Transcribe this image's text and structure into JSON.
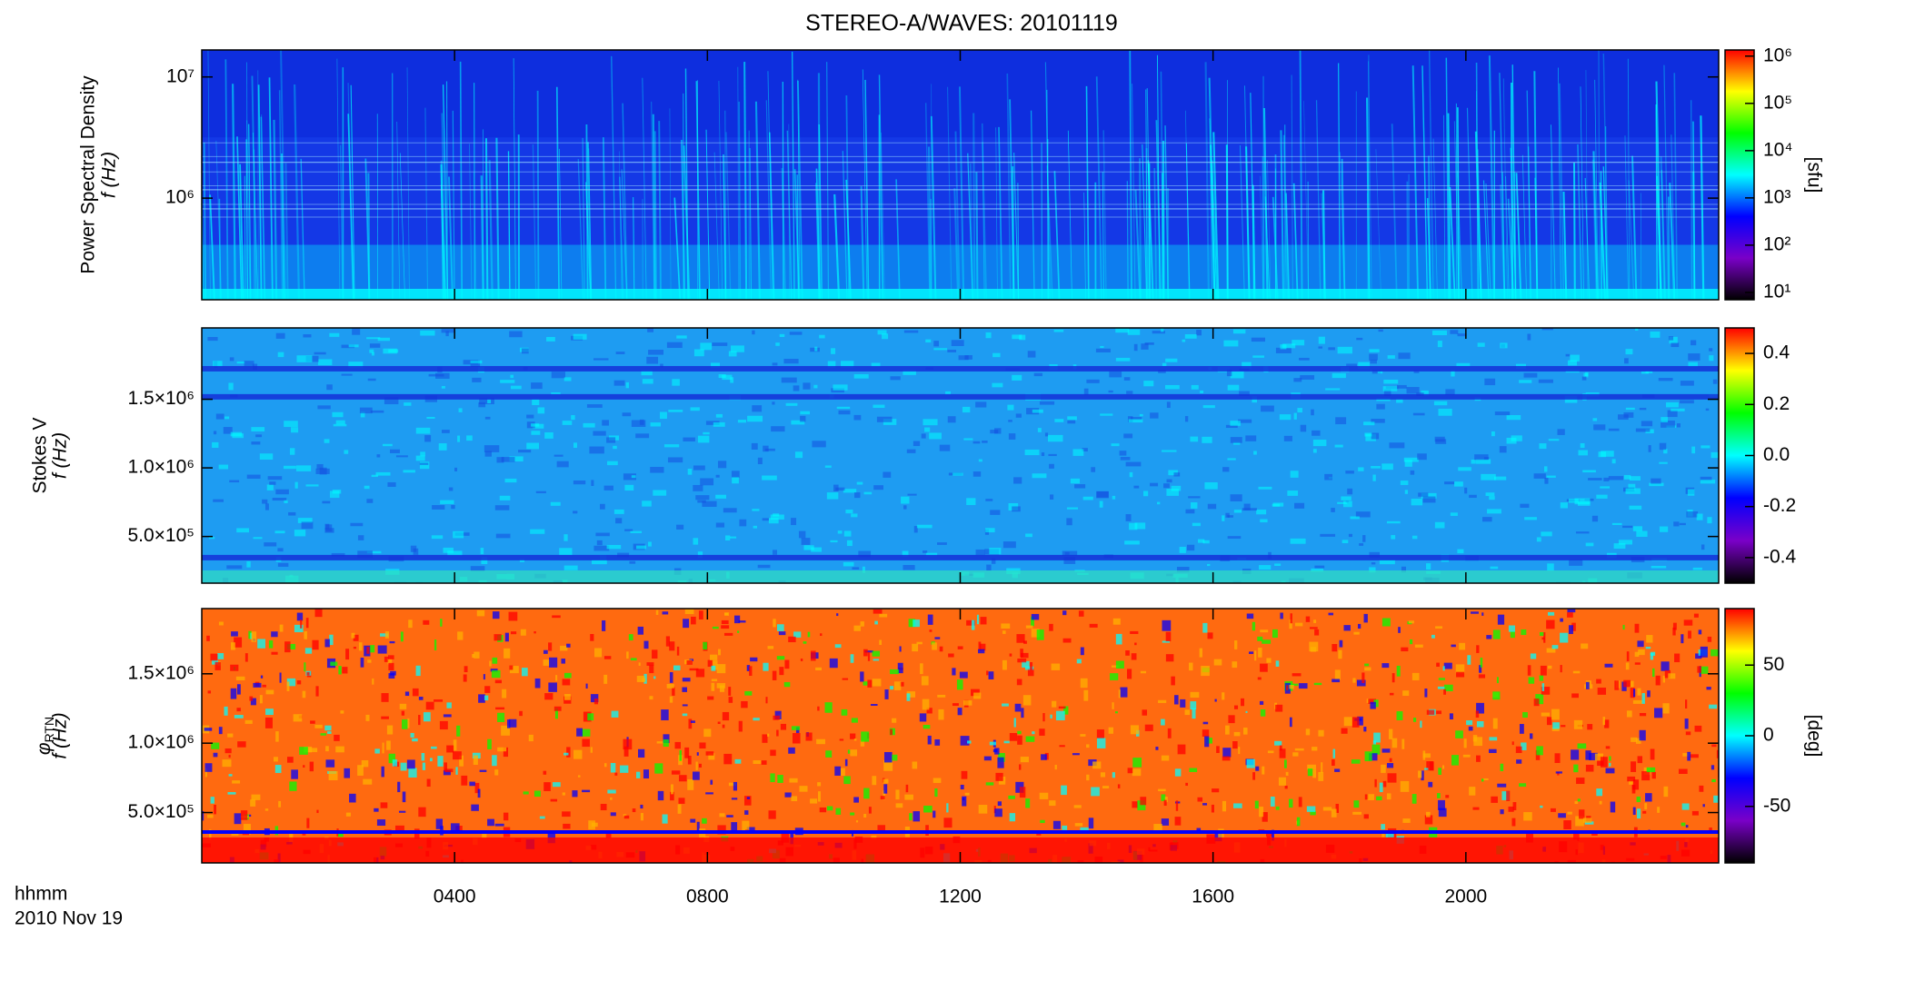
{
  "title": "STEREO-A/WAVES: 20101119",
  "xlabel": "hhmm",
  "xlabel2": "2010 Nov 19",
  "colormap": [
    "#000000",
    "#7a00c8",
    "#0000ff",
    "#00ffff",
    "#00ff00",
    "#ffff00",
    "#ff0000"
  ],
  "chart_data": [
    {
      "type": "heatmap",
      "ylabel": "Power Spectral Density",
      "ylabel2": "f (Hz)",
      "ylog": true,
      "ylim": [
        145000,
        16700000
      ],
      "yticks": [
        {
          "value": 1000000,
          "label": "10⁶"
        },
        {
          "value": 10000000,
          "label": "10⁷"
        }
      ],
      "clog": true,
      "clim": [
        7,
        1350000
      ],
      "cticks": [
        {
          "value": 10,
          "label": "10¹"
        },
        {
          "value": 100,
          "label": "10²"
        },
        {
          "value": 1000,
          "label": "10³"
        },
        {
          "value": 10000,
          "label": "10⁴"
        },
        {
          "value": 100000,
          "label": "10⁵"
        },
        {
          "value": 1000000,
          "label": "10⁶"
        }
      ],
      "clabel": "[sfu]"
    },
    {
      "type": "heatmap",
      "ylabel": "Stokes V",
      "ylabel2": "f (Hz)",
      "ylim": [
        160000,
        2020000
      ],
      "yticks": [
        {
          "value": 500000,
          "label": "5.0×10⁵"
        },
        {
          "value": 1000000,
          "label": "1.0×10⁶"
        },
        {
          "value": 1500000,
          "label": "1.5×10⁶"
        }
      ],
      "clim": [
        -0.5,
        0.5
      ],
      "cticks": [
        -0.4,
        -0.2,
        {
          "value": 0,
          "label": "0.0"
        },
        0.2,
        0.4
      ]
    },
    {
      "type": "heatmap",
      "ylabel": {
        "text": "φ",
        "sub": "RTN"
      },
      "ylabel2": "f (Hz)",
      "ylim": [
        137000,
        1970000
      ],
      "yticks": [
        {
          "value": 500000,
          "label": "5.0×10⁵"
        },
        {
          "value": 1000000,
          "label": "1.0×10⁶"
        },
        {
          "value": 1500000,
          "label": "1.5×10⁶"
        }
      ],
      "clim": [
        -90,
        90
      ],
      "cticks": [
        -50,
        0,
        50
      ],
      "clabel": "[deg]",
      "xlim": [
        0,
        24
      ],
      "xticks": [
        {
          "value": 4,
          "label": "0400"
        },
        {
          "value": 8,
          "label": "0800"
        },
        {
          "value": 12,
          "label": "1200"
        },
        {
          "value": 16,
          "label": "1600"
        },
        {
          "value": 20,
          "label": "2000"
        }
      ]
    }
  ]
}
